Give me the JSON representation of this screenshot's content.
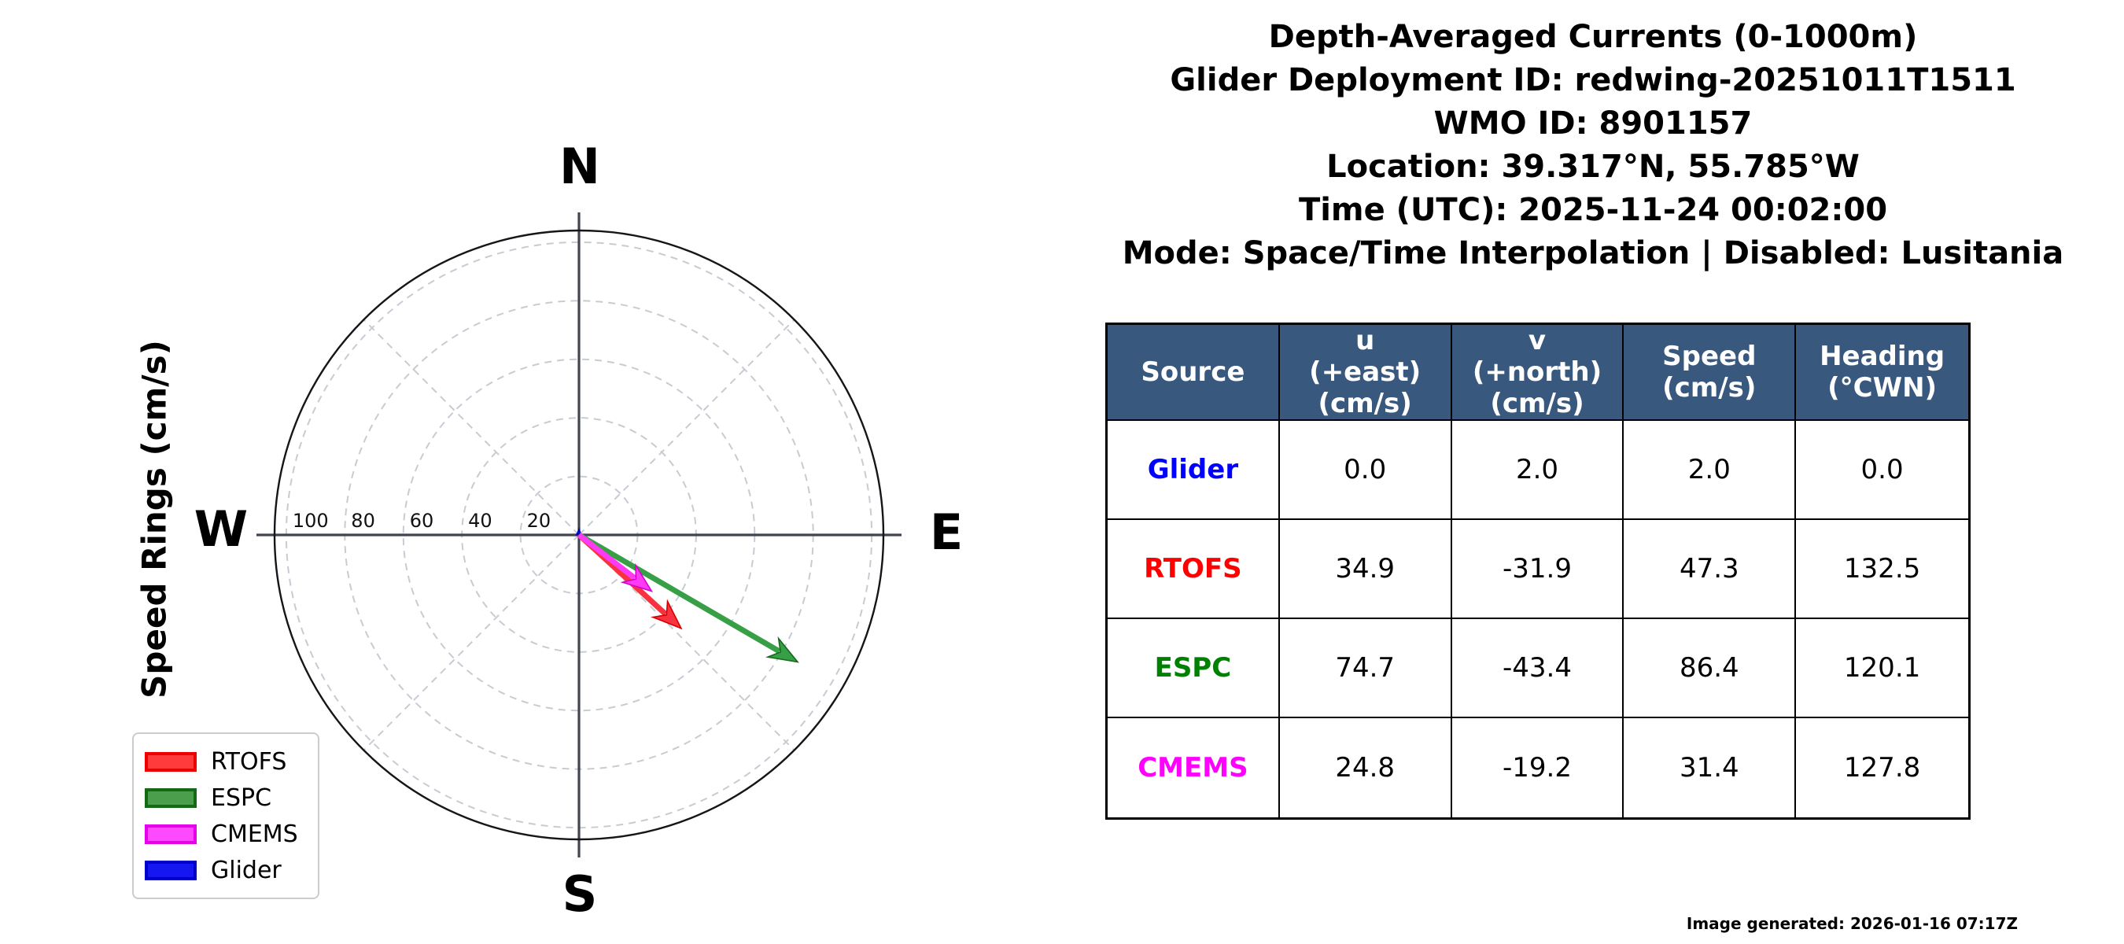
{
  "title": {
    "lines": [
      "Depth-Averaged Currents (0-1000m)",
      "Glider Deployment ID: redwing-20251011T1511",
      "WMO ID: 8901157",
      "Location: 39.317°N, 55.785°W",
      "Time (UTC): 2025-11-24 00:02:00",
      "Mode: Space/Time Interpolation | Disabled: Lusitania"
    ]
  },
  "polar": {
    "axis_title": "Speed Rings (cm/s)",
    "compass": {
      "north": "N",
      "east": "E",
      "south": "S",
      "west": "W"
    },
    "ring_labels": [
      "100",
      "80",
      "60",
      "40",
      "20"
    ],
    "grid_color": "#c9cbd4",
    "axis_color": "#40454e",
    "outer_circle_color": "#15151a"
  },
  "chart_data": {
    "type": "polar_quiver",
    "units": "cm/s",
    "rings_cms": [
      20,
      40,
      60,
      80,
      100
    ],
    "rmax_cms": 104,
    "spoke_angles_deg": [
      45,
      135,
      225,
      315
    ],
    "series": [
      {
        "name": "Glider",
        "u": 0.0,
        "v": 2.0,
        "speed": 2.0,
        "heading": 0.0,
        "color": "#1414e8",
        "edge": "#0000c0"
      },
      {
        "name": "RTOFS",
        "u": 34.9,
        "v": -31.9,
        "speed": 47.3,
        "heading": 132.5,
        "color": "#f8323e",
        "edge": "#d40000"
      },
      {
        "name": "ESPC",
        "u": 74.7,
        "v": -43.4,
        "speed": 86.4,
        "heading": 120.1,
        "color": "#379f46",
        "edge": "#15691c"
      },
      {
        "name": "CMEMS",
        "u": 24.8,
        "v": -19.2,
        "speed": 31.4,
        "heading": 127.8,
        "color": "#fd3bf4",
        "edge": "#d400cc"
      }
    ]
  },
  "legend": {
    "items": [
      {
        "label": "RTOFS",
        "fill": "#ff3b3b",
        "border": "#ec0000"
      },
      {
        "label": "ESPC",
        "fill": "#4b9e4b",
        "border": "#156915"
      },
      {
        "label": "CMEMS",
        "fill": "#ff49ff",
        "border": "#e800e8"
      },
      {
        "label": "Glider",
        "fill": "#1616f0",
        "border": "#0000c8"
      }
    ]
  },
  "table": {
    "header_bg": "#38587e",
    "headers": [
      "Source",
      "u\n(+east)\n(cm/s)",
      "v\n(+north)\n(cm/s)",
      "Speed\n(cm/s)",
      "Heading\n(°CWN)"
    ],
    "rows": [
      {
        "source": "Glider",
        "color": "#0000ff",
        "u": "0.0",
        "v": "2.0",
        "speed": "2.0",
        "heading": "0.0"
      },
      {
        "source": "RTOFS",
        "color": "#ff0000",
        "u": "34.9",
        "v": "-31.9",
        "speed": "47.3",
        "heading": "132.5"
      },
      {
        "source": "ESPC",
        "color": "#008000",
        "u": "74.7",
        "v": "-43.4",
        "speed": "86.4",
        "heading": "120.1"
      },
      {
        "source": "CMEMS",
        "color": "#ff00ff",
        "u": "24.8",
        "v": "-19.2",
        "speed": "31.4",
        "heading": "127.8"
      }
    ]
  },
  "footer": {
    "generated_note": "Image generated: 2026-01-16 07:17Z"
  }
}
